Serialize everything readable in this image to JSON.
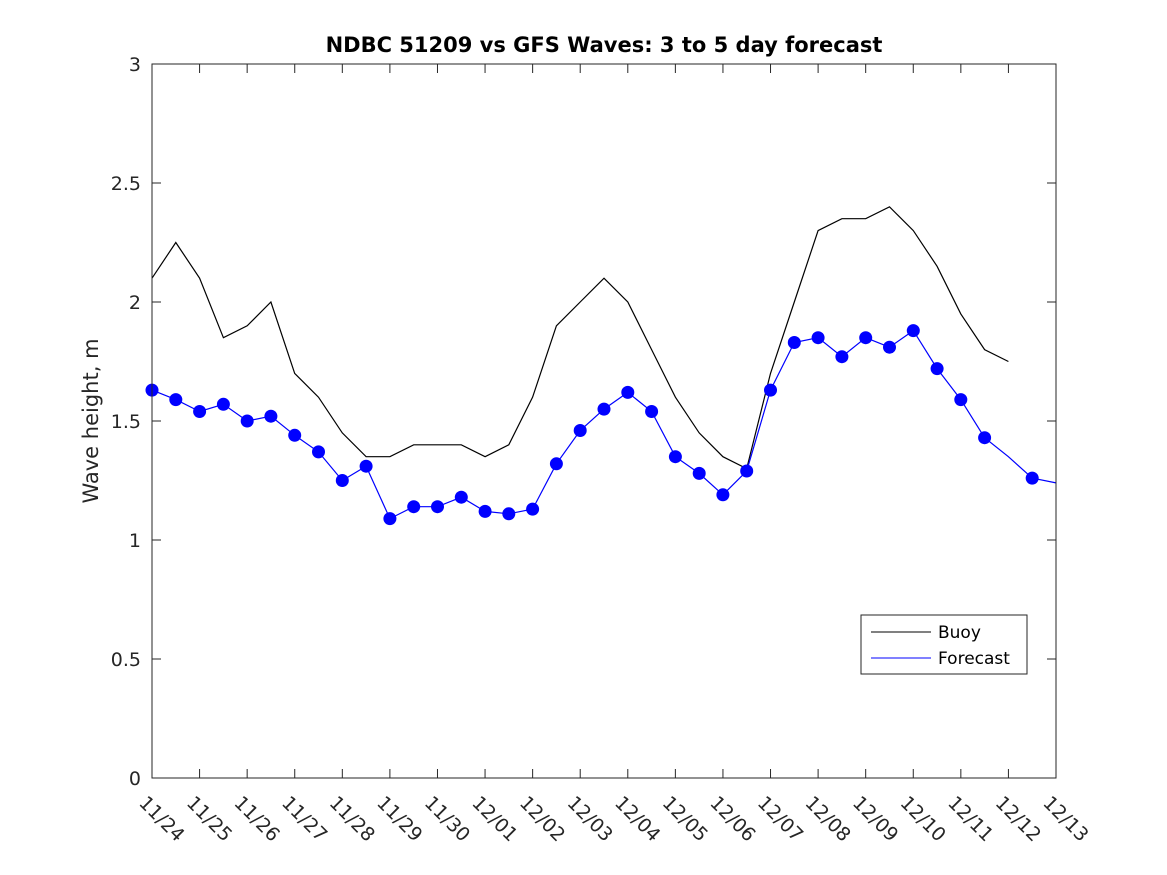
{
  "chart_data": {
    "type": "line",
    "title": "NDBC 51209 vs GFS Waves: 3 to 5 day forecast",
    "xlabel": "",
    "ylabel": "Wave height, m",
    "xlim": [
      0,
      19
    ],
    "ylim": [
      0,
      3
    ],
    "yticks": [
      0,
      0.5,
      1,
      1.5,
      2,
      2.5,
      3
    ],
    "ytick_labels": [
      "0",
      "0.5",
      "1",
      "1.5",
      "2",
      "2.5",
      "3"
    ],
    "xtick_labels": [
      "11/24",
      "11/25",
      "11/26",
      "11/27",
      "11/28",
      "11/29",
      "11/30",
      "12/01",
      "12/02",
      "12/03",
      "12/04",
      "12/05",
      "12/06",
      "12/07",
      "12/08",
      "12/09",
      "12/10",
      "12/11",
      "12/12",
      "12/13"
    ],
    "legend": {
      "location": "lower-right",
      "entries": [
        "Buoy",
        "Forecast"
      ]
    },
    "colors": {
      "buoy": "#000000",
      "forecast": "#0000ff",
      "marker": "#0000ff"
    },
    "series": [
      {
        "name": "Buoy",
        "x": [
          0,
          0.5,
          1,
          1.5,
          2,
          2.5,
          3,
          3.5,
          4,
          4.5,
          5,
          5.5,
          6,
          6.5,
          7,
          7.5,
          8,
          8.5,
          9,
          9.5,
          10,
          10.5,
          11,
          11.5,
          12,
          12.5,
          13,
          13.5,
          14,
          14.5,
          15,
          15.5,
          16,
          16.5,
          17,
          17.5,
          18
        ],
        "y": [
          2.1,
          2.25,
          2.1,
          1.85,
          1.9,
          2.0,
          1.7,
          1.6,
          1.45,
          1.35,
          1.35,
          1.4,
          1.4,
          1.4,
          1.35,
          1.4,
          1.6,
          1.9,
          2.0,
          2.1,
          2.0,
          1.8,
          1.6,
          1.45,
          1.35,
          1.3,
          1.7,
          2.0,
          2.3,
          2.35,
          2.35,
          2.4,
          2.3,
          2.15,
          1.95,
          1.8,
          1.75
        ]
      },
      {
        "name": "Forecast",
        "x": [
          0,
          0.5,
          1,
          1.5,
          2,
          2.5,
          3,
          3.5,
          4,
          4.5,
          5,
          5.5,
          6,
          6.5,
          7,
          7.5,
          8,
          8.5,
          9,
          9.5,
          10,
          10.5,
          11,
          11.5,
          12,
          12.5,
          13,
          13.5,
          14,
          14.5,
          15,
          15.5,
          16,
          16.5,
          17,
          17.5,
          18,
          18.5,
          19
        ],
        "y": [
          1.63,
          1.59,
          1.54,
          1.57,
          1.5,
          1.52,
          1.44,
          1.37,
          1.25,
          1.31,
          1.09,
          1.14,
          1.14,
          1.18,
          1.12,
          1.11,
          1.13,
          1.32,
          1.46,
          1.55,
          1.62,
          1.54,
          1.35,
          1.28,
          1.19,
          1.29,
          1.63,
          1.83,
          1.85,
          1.77,
          1.85,
          1.81,
          1.88,
          1.72,
          1.59,
          1.43,
          1.35,
          1.26,
          1.24
        ]
      }
    ],
    "markers": {
      "x": [
        0,
        0.5,
        1,
        1.5,
        2,
        2.5,
        3,
        3.5,
        4,
        4.5,
        5,
        5.5,
        6,
        6.5,
        7,
        7.5,
        8,
        8.5,
        9,
        9.5,
        10,
        10.5,
        11,
        11.5,
        12,
        12.5,
        13,
        13.5,
        14,
        14.5,
        15,
        15.5,
        16,
        16.5,
        17,
        17.5,
        18.5
      ],
      "y": [
        1.63,
        1.59,
        1.54,
        1.57,
        1.5,
        1.52,
        1.44,
        1.37,
        1.25,
        1.31,
        1.09,
        1.14,
        1.14,
        1.18,
        1.12,
        1.11,
        1.13,
        1.32,
        1.46,
        1.55,
        1.62,
        1.54,
        1.35,
        1.28,
        1.19,
        1.29,
        1.63,
        1.83,
        1.85,
        1.77,
        1.85,
        1.81,
        1.88,
        1.72,
        1.59,
        1.43,
        1.26
      ]
    }
  }
}
